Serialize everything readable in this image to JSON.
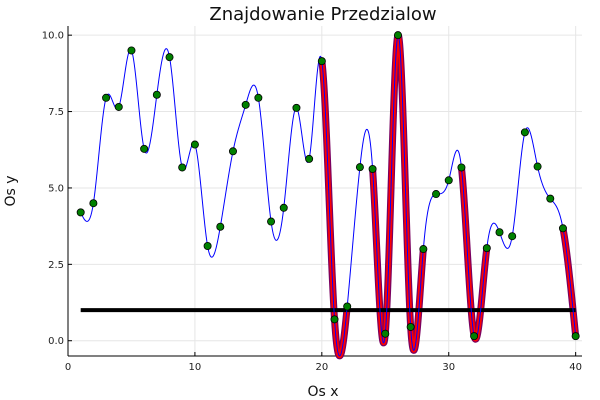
{
  "chart_data": {
    "type": "line",
    "title": "Znajdowanie Przedzialow",
    "xlabel": "Os x",
    "ylabel": "Os y",
    "xlim": [
      0,
      40.5
    ],
    "ylim": [
      -0.5,
      10.3
    ],
    "x_ticks": [
      0,
      10,
      20,
      30,
      40
    ],
    "y_ticks": [
      0.0,
      2.5,
      5.0,
      7.5,
      10.0
    ],
    "x_tick_labels": [
      "0",
      "10",
      "20",
      "30",
      "40"
    ],
    "y_tick_labels": [
      "0.0",
      "2.5",
      "5.0",
      "7.5",
      "10.0"
    ],
    "grid": true,
    "colors": {
      "curve": "#0000ff",
      "highlight": "#ff0000",
      "highlight_edge": "#7a0060",
      "threshold": "#000000",
      "points": "#008000"
    },
    "series": [
      {
        "kind": "spline",
        "x": [
          1,
          2,
          3,
          4,
          5,
          6,
          7,
          8,
          9,
          10,
          11,
          12,
          13,
          14,
          15,
          16,
          17,
          18,
          19,
          20,
          21,
          22,
          23,
          24,
          25,
          26,
          27,
          28,
          29,
          30,
          31,
          32,
          33,
          34,
          35,
          36,
          37,
          38,
          39,
          40
        ],
        "values": [
          4.2,
          4.5,
          7.95,
          7.65,
          9.5,
          6.28,
          8.05,
          9.28,
          5.67,
          6.42,
          3.1,
          3.73,
          6.2,
          7.72,
          7.95,
          3.9,
          4.35,
          7.62,
          5.95,
          9.15,
          0.7,
          1.12,
          5.68,
          5.62,
          0.23,
          10.0,
          0.45,
          3.0,
          4.8,
          5.25,
          5.67,
          0.15,
          3.03,
          3.55,
          3.42,
          6.82,
          5.7,
          4.65,
          3.68,
          0.15
        ]
      },
      {
        "kind": "threshold",
        "x": [
          1,
          40
        ],
        "values": [
          1.0,
          1.0
        ]
      }
    ],
    "highlight_intervals": [
      [
        20,
        22
      ],
      [
        24,
        25
      ],
      [
        25,
        27
      ],
      [
        27,
        28
      ],
      [
        31,
        33
      ],
      [
        39,
        40
      ]
    ]
  }
}
